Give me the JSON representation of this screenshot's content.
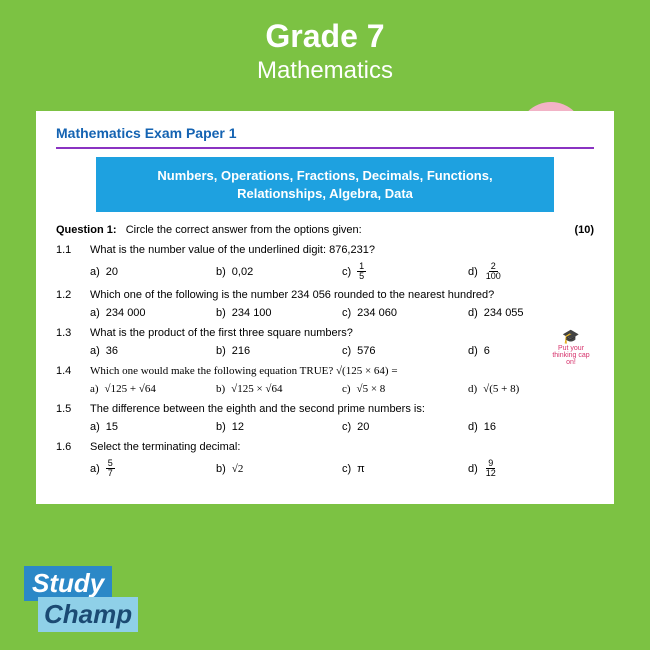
{
  "header": {
    "grade": "Grade 7",
    "subject": "Mathematics"
  },
  "paper": {
    "title": "Mathematics Exam Paper 1",
    "topics": "Numbers, Operations, Fractions, Decimals, Functions, Relationships, Algebra, Data",
    "q_label": "Question 1:",
    "q_instruction": "Circle the correct answer from the options given:",
    "q_marks": "(10)",
    "items": [
      {
        "num": "1.1",
        "text": "What is the number value of the underlined digit: 876,231?"
      },
      {
        "num": "1.2",
        "text": "Which one of the following is the number 234 056 rounded to the nearest hundred?"
      },
      {
        "num": "1.3",
        "text": "What is the product of the first three square numbers?"
      },
      {
        "num": "1.4",
        "text": "Which one would make the following equation TRUE? √(125 × 64) ="
      },
      {
        "num": "1.5",
        "text": "The difference between the eighth and the second prime numbers is:"
      },
      {
        "num": "1.6",
        "text": "Select the terminating decimal:"
      }
    ],
    "opts": {
      "r1": {
        "a": "20",
        "b": "0,02",
        "c_n": "1",
        "c_d": "5",
        "d_n": "2",
        "d_d": "100"
      },
      "r2": {
        "a": "234 000",
        "b": "234 100",
        "c": "234 060",
        "d": "234 055"
      },
      "r3": {
        "a": "36",
        "b": "216",
        "c": "576",
        "d": "6"
      },
      "r4": {
        "a": "√125 + √64",
        "b": "√125 × √64",
        "c": "√5 × 8",
        "d": "√(5 + 8)"
      },
      "r5": {
        "a": "15",
        "b": "12",
        "c": "20",
        "d": "16"
      },
      "r6": {
        "a_n": "5",
        "a_d": "7",
        "b": "√2",
        "c": "π",
        "d_n": "9",
        "d_d": "12"
      }
    },
    "labels": {
      "a": "a)",
      "b": "b)",
      "c": "c)",
      "d": "d)"
    },
    "thinking": "Put your thinking cap on!"
  },
  "calc": {
    "plus": "+",
    "minus": "−",
    "times": "×",
    "divide": "÷"
  },
  "logo": {
    "line1": "Study",
    "line2": "Champ"
  },
  "colors": {
    "bg": "#7cc243",
    "paper_title": "#1463b2",
    "divider": "#8a33c2",
    "topics_bg": "#1ea1e0",
    "pink": "#f2b3c6",
    "logo_dark": "#2b88c7",
    "logo_light": "#8fd0e8"
  }
}
